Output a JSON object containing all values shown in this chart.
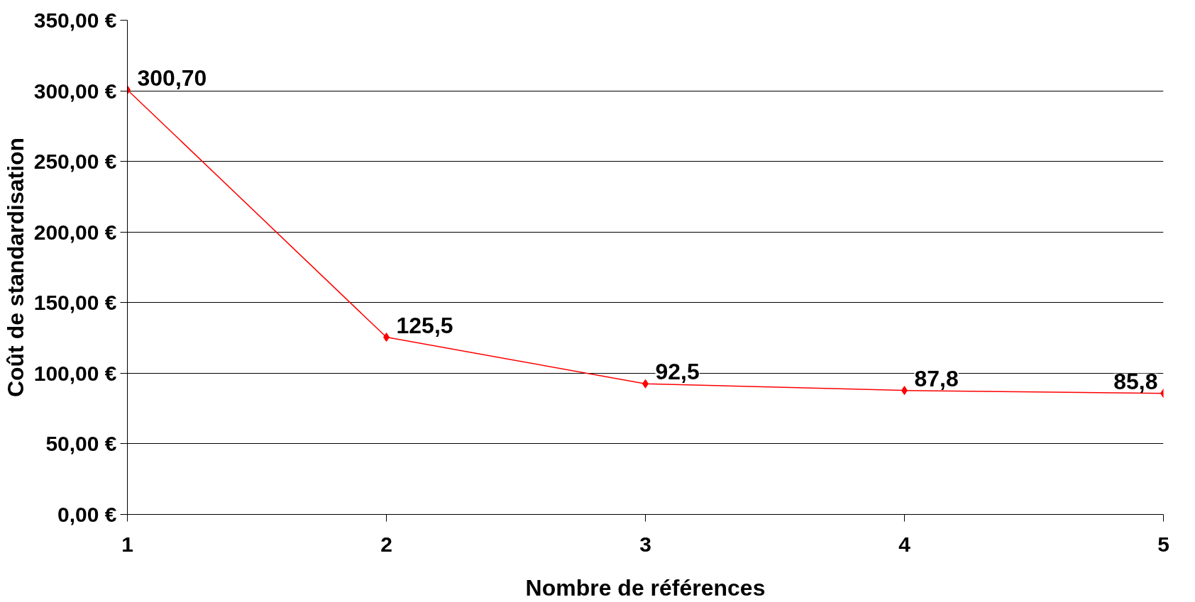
{
  "chart_data": {
    "type": "line",
    "xlabel": "Nombre de références",
    "ylabel": "Coût de standardisation",
    "x": [
      1,
      2,
      3,
      4,
      5
    ],
    "series": [
      {
        "color": "#ff0000",
        "values": [
          300.7,
          125.5,
          92.5,
          87.8,
          85.8
        ],
        "value_labels": [
          "300,70",
          "125,5",
          "92,5",
          "87,8",
          "85,8"
        ]
      }
    ],
    "xlim": [
      1,
      5
    ],
    "xticks": [
      1,
      2,
      3,
      4,
      5
    ],
    "ylim": [
      0,
      350
    ],
    "yticks": [
      {
        "value": 0,
        "label": "0,00 €"
      },
      {
        "value": 50,
        "label": "50,00 €"
      },
      {
        "value": 100,
        "label": "100,00 €"
      },
      {
        "value": 150,
        "label": "150,00 €"
      },
      {
        "value": 200,
        "label": "200,00 €"
      },
      {
        "value": 250,
        "label": "250,00 €"
      },
      {
        "value": 300,
        "label": "300,00 €"
      },
      {
        "value": 350,
        "label": "350,00 €"
      }
    ],
    "grid": "y",
    "marker": "diamond",
    "line_style": "solid"
  }
}
